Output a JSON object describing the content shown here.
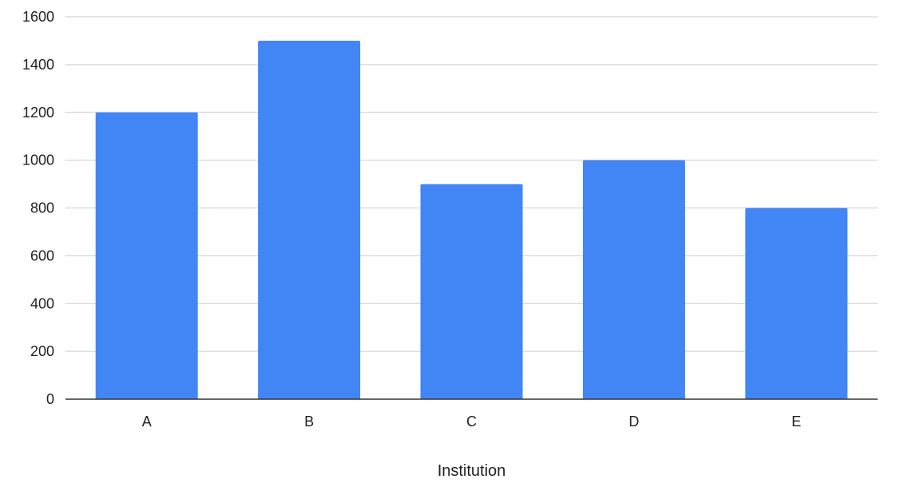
{
  "chart_data": {
    "type": "bar",
    "categories": [
      "A",
      "B",
      "C",
      "D",
      "E"
    ],
    "values": [
      1200,
      1500,
      900,
      1000,
      800
    ],
    "xlabel": "Institution",
    "ylabel": "",
    "ylim": [
      0,
      1600
    ],
    "yticks": [
      0,
      200,
      400,
      600,
      800,
      1000,
      1200,
      1400,
      1600
    ],
    "grid": true,
    "legend": "none",
    "colors": {
      "bar": "#4285F4",
      "grid": "#cccccc",
      "axis": "#333333",
      "text": "#222222"
    }
  }
}
